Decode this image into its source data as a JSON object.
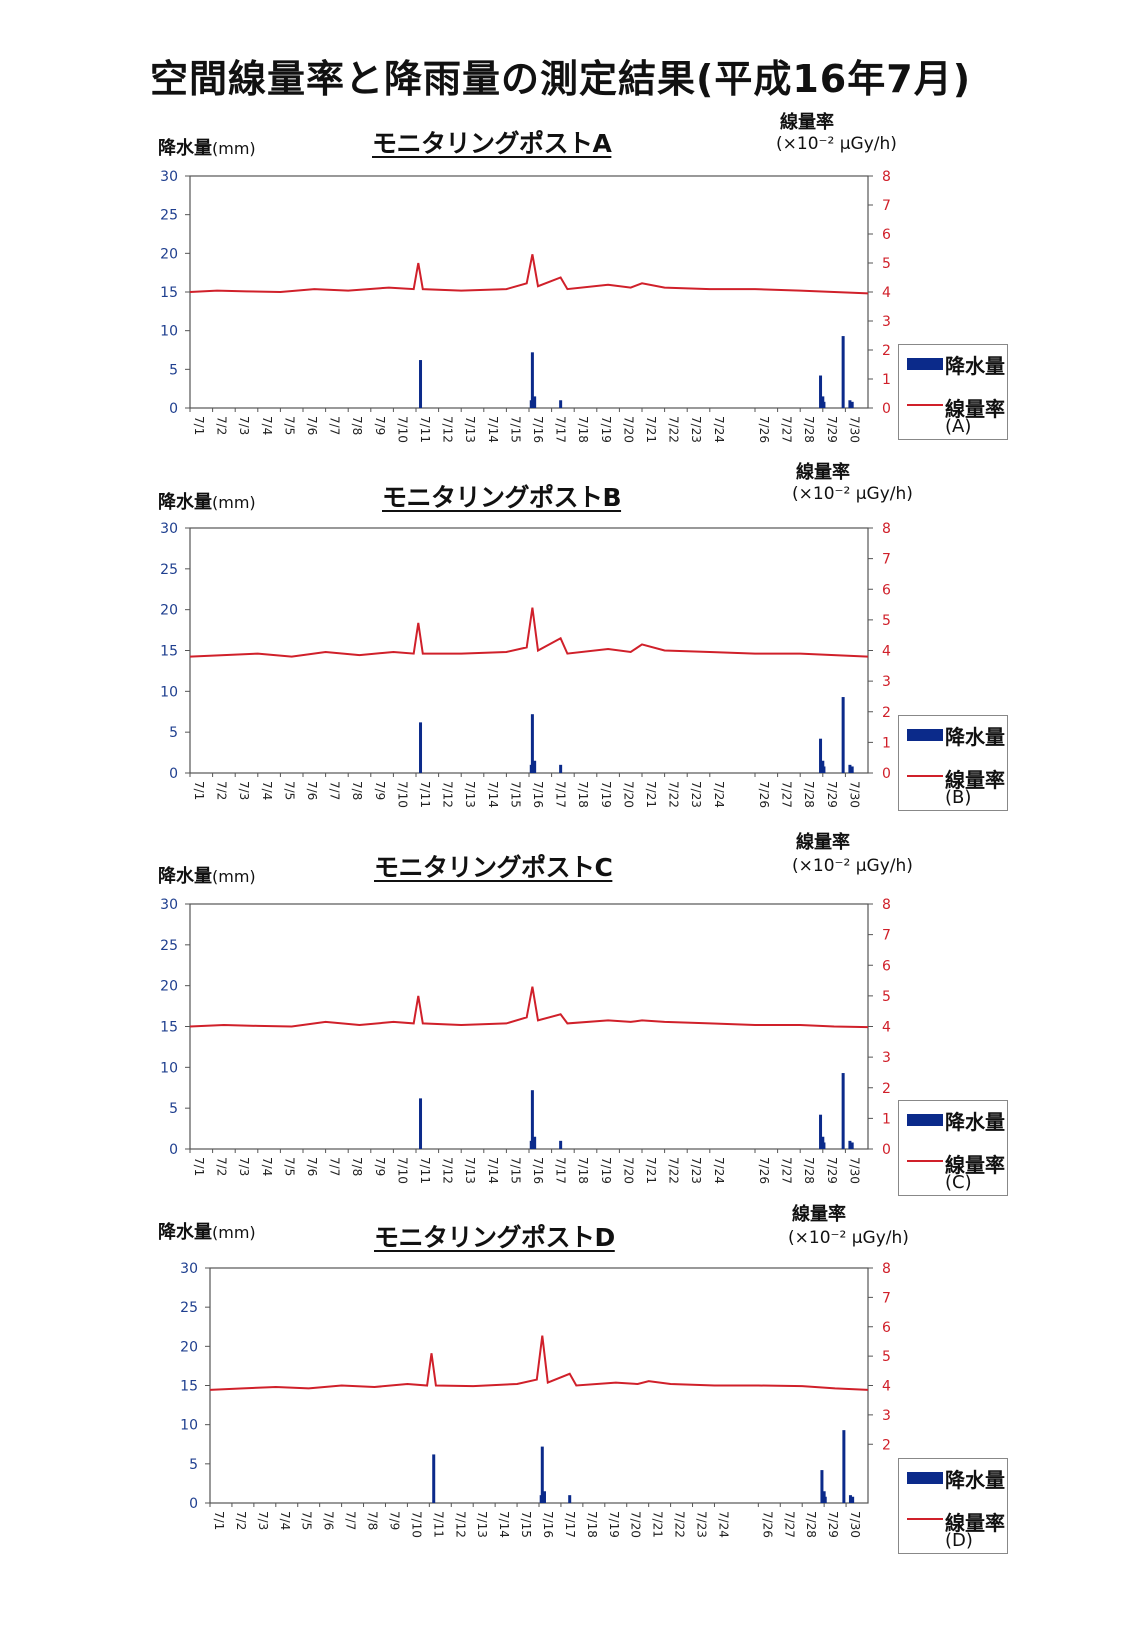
{
  "page": {
    "title": "空間線量率と降雨量の測定結果(平成16年7月)"
  },
  "colors": {
    "rain": "#0b2a8a",
    "dose": "#d0202a",
    "left_axis_text": "#1f3f8f",
    "right_axis_text": "#d0202a"
  },
  "labels": {
    "rain_axis": "降水量",
    "rain_unit": "(mm)",
    "rate_axis": "線量率",
    "rate_unit": "(×10⁻² μGy/h)",
    "legend_rain": "降水量",
    "legend_rate": "線量率"
  },
  "chart_data": [
    {
      "type": "bar+line",
      "title": "モニタリングポストA",
      "legend_tag": "(A)",
      "x_tick_labels": [
        "7/1",
        "7/2",
        "7/3",
        "7/4",
        "7/5",
        "7/6",
        "7/7",
        "7/8",
        "7/9",
        "7/10",
        "7/11",
        "7/12",
        "7/13",
        "7/14",
        "7/15",
        "7/16",
        "7/17",
        "7/18",
        "7/19",
        "7/20",
        "7/21",
        "7/22",
        "7/23",
        "7/24",
        "7/26",
        "7/27",
        "7/28",
        "7/29",
        "7/30"
      ],
      "x_range_days": [
        1,
        31
      ],
      "left_axis": {
        "ticks": [
          0,
          5,
          10,
          15,
          20,
          25,
          30
        ],
        "ylim": [
          0,
          30
        ]
      },
      "right_axis": {
        "ticks": [
          0,
          1,
          2,
          3,
          4,
          5,
          6,
          7,
          8
        ],
        "ylim": [
          0,
          8
        ]
      },
      "rain": [
        {
          "day": 11.2,
          "mm": 6.2
        },
        {
          "day": 16.1,
          "mm": 1.0
        },
        {
          "day": 16.15,
          "mm": 7.2
        },
        {
          "day": 16.25,
          "mm": 1.5
        },
        {
          "day": 17.4,
          "mm": 1.0
        },
        {
          "day": 28.9,
          "mm": 4.2
        },
        {
          "day": 29.0,
          "mm": 1.5
        },
        {
          "day": 29.05,
          "mm": 0.8
        },
        {
          "day": 29.9,
          "mm": 9.3
        },
        {
          "day": 30.2,
          "mm": 1.0
        },
        {
          "day": 30.3,
          "mm": 0.8
        }
      ],
      "dose_rate": [
        {
          "day": 1.0,
          "v": 4.0
        },
        {
          "day": 2.2,
          "v": 4.05
        },
        {
          "day": 3.5,
          "v": 4.02
        },
        {
          "day": 5.0,
          "v": 4.0
        },
        {
          "day": 6.5,
          "v": 4.1
        },
        {
          "day": 8.0,
          "v": 4.05
        },
        {
          "day": 9.8,
          "v": 4.15
        },
        {
          "day": 10.9,
          "v": 4.1
        },
        {
          "day": 11.1,
          "v": 5.0
        },
        {
          "day": 11.3,
          "v": 4.1
        },
        {
          "day": 13.0,
          "v": 4.05
        },
        {
          "day": 15.0,
          "v": 4.1
        },
        {
          "day": 15.9,
          "v": 4.3
        },
        {
          "day": 16.15,
          "v": 5.3
        },
        {
          "day": 16.4,
          "v": 4.2
        },
        {
          "day": 17.4,
          "v": 4.5
        },
        {
          "day": 17.7,
          "v": 4.1
        },
        {
          "day": 19.5,
          "v": 4.25
        },
        {
          "day": 20.5,
          "v": 4.15
        },
        {
          "day": 21.0,
          "v": 4.3
        },
        {
          "day": 22.0,
          "v": 4.15
        },
        {
          "day": 24.0,
          "v": 4.1
        },
        {
          "day": 26.0,
          "v": 4.1
        },
        {
          "day": 28.0,
          "v": 4.05
        },
        {
          "day": 29.5,
          "v": 4.0
        },
        {
          "day": 31.0,
          "v": 3.95
        }
      ]
    },
    {
      "type": "bar+line",
      "title": "モニタリングポストB",
      "legend_tag": "(B)",
      "x_tick_labels": [
        "7/1",
        "7/2",
        "7/3",
        "7/4",
        "7/5",
        "7/6",
        "7/7",
        "7/8",
        "7/9",
        "7/10",
        "7/11",
        "7/12",
        "7/13",
        "7/14",
        "7/15",
        "7/16",
        "7/17",
        "7/18",
        "7/19",
        "7/20",
        "7/21",
        "7/22",
        "7/23",
        "7/24",
        "7/26",
        "7/27",
        "7/28",
        "7/29",
        "7/30"
      ],
      "x_range_days": [
        1,
        31
      ],
      "left_axis": {
        "ticks": [
          0,
          5,
          10,
          15,
          20,
          25,
          30
        ],
        "ylim": [
          0,
          30
        ]
      },
      "right_axis": {
        "ticks": [
          0,
          1,
          2,
          3,
          4,
          5,
          6,
          7,
          8
        ],
        "ylim": [
          0,
          8
        ]
      },
      "rain": [
        {
          "day": 11.2,
          "mm": 6.2
        },
        {
          "day": 16.1,
          "mm": 1.0
        },
        {
          "day": 16.15,
          "mm": 7.2
        },
        {
          "day": 16.25,
          "mm": 1.5
        },
        {
          "day": 17.4,
          "mm": 1.0
        },
        {
          "day": 28.9,
          "mm": 4.2
        },
        {
          "day": 29.0,
          "mm": 1.5
        },
        {
          "day": 29.05,
          "mm": 0.8
        },
        {
          "day": 29.9,
          "mm": 9.3
        },
        {
          "day": 30.2,
          "mm": 1.0
        },
        {
          "day": 30.3,
          "mm": 0.8
        }
      ],
      "dose_rate": [
        {
          "day": 1.0,
          "v": 3.8
        },
        {
          "day": 2.5,
          "v": 3.85
        },
        {
          "day": 4.0,
          "v": 3.9
        },
        {
          "day": 5.5,
          "v": 3.8
        },
        {
          "day": 7.0,
          "v": 3.95
        },
        {
          "day": 8.5,
          "v": 3.85
        },
        {
          "day": 10.0,
          "v": 3.95
        },
        {
          "day": 10.9,
          "v": 3.9
        },
        {
          "day": 11.1,
          "v": 4.9
        },
        {
          "day": 11.3,
          "v": 3.9
        },
        {
          "day": 13.0,
          "v": 3.9
        },
        {
          "day": 15.0,
          "v": 3.95
        },
        {
          "day": 15.9,
          "v": 4.1
        },
        {
          "day": 16.15,
          "v": 5.4
        },
        {
          "day": 16.4,
          "v": 4.0
        },
        {
          "day": 17.4,
          "v": 4.4
        },
        {
          "day": 17.7,
          "v": 3.9
        },
        {
          "day": 19.5,
          "v": 4.05
        },
        {
          "day": 20.5,
          "v": 3.95
        },
        {
          "day": 21.0,
          "v": 4.2
        },
        {
          "day": 22.0,
          "v": 4.0
        },
        {
          "day": 24.0,
          "v": 3.95
        },
        {
          "day": 26.0,
          "v": 3.9
        },
        {
          "day": 28.0,
          "v": 3.9
        },
        {
          "day": 29.5,
          "v": 3.85
        },
        {
          "day": 31.0,
          "v": 3.8
        }
      ]
    },
    {
      "type": "bar+line",
      "title": "モニタリングポストC",
      "legend_tag": "(C)",
      "x_tick_labels": [
        "7/1",
        "7/2",
        "7/3",
        "7/4",
        "7/5",
        "7/6",
        "7/7",
        "7/8",
        "7/9",
        "7/10",
        "7/11",
        "7/12",
        "7/13",
        "7/14",
        "7/15",
        "7/16",
        "7/17",
        "7/18",
        "7/19",
        "7/20",
        "7/21",
        "7/22",
        "7/23",
        "7/24",
        "7/26",
        "7/27",
        "7/28",
        "7/29",
        "7/30"
      ],
      "x_range_days": [
        1,
        31
      ],
      "left_axis": {
        "ticks": [
          0,
          5,
          10,
          15,
          20,
          25,
          30
        ],
        "ylim": [
          0,
          30
        ]
      },
      "right_axis": {
        "ticks": [
          0,
          1,
          2,
          3,
          4,
          5,
          6,
          7,
          8
        ],
        "ylim": [
          0,
          8
        ]
      },
      "rain": [
        {
          "day": 11.2,
          "mm": 6.2
        },
        {
          "day": 16.1,
          "mm": 1.0
        },
        {
          "day": 16.15,
          "mm": 7.2
        },
        {
          "day": 16.25,
          "mm": 1.5
        },
        {
          "day": 17.4,
          "mm": 1.0
        },
        {
          "day": 28.9,
          "mm": 4.2
        },
        {
          "day": 29.0,
          "mm": 1.5
        },
        {
          "day": 29.05,
          "mm": 0.8
        },
        {
          "day": 29.9,
          "mm": 9.3
        },
        {
          "day": 30.2,
          "mm": 1.0
        },
        {
          "day": 30.3,
          "mm": 0.8
        }
      ],
      "dose_rate": [
        {
          "day": 1.0,
          "v": 4.0
        },
        {
          "day": 2.5,
          "v": 4.05
        },
        {
          "day": 4.0,
          "v": 4.02
        },
        {
          "day": 5.5,
          "v": 4.0
        },
        {
          "day": 7.0,
          "v": 4.15
        },
        {
          "day": 8.5,
          "v": 4.05
        },
        {
          "day": 10.0,
          "v": 4.15
        },
        {
          "day": 10.9,
          "v": 4.1
        },
        {
          "day": 11.1,
          "v": 5.0
        },
        {
          "day": 11.3,
          "v": 4.1
        },
        {
          "day": 13.0,
          "v": 4.05
        },
        {
          "day": 15.0,
          "v": 4.1
        },
        {
          "day": 15.9,
          "v": 4.3
        },
        {
          "day": 16.15,
          "v": 5.3
        },
        {
          "day": 16.4,
          "v": 4.2
        },
        {
          "day": 17.4,
          "v": 4.4
        },
        {
          "day": 17.7,
          "v": 4.1
        },
        {
          "day": 19.5,
          "v": 4.2
        },
        {
          "day": 20.5,
          "v": 4.15
        },
        {
          "day": 21.0,
          "v": 4.2
        },
        {
          "day": 22.0,
          "v": 4.15
        },
        {
          "day": 24.0,
          "v": 4.1
        },
        {
          "day": 26.0,
          "v": 4.05
        },
        {
          "day": 28.0,
          "v": 4.05
        },
        {
          "day": 29.5,
          "v": 4.0
        },
        {
          "day": 31.0,
          "v": 3.98
        }
      ]
    },
    {
      "type": "bar+line",
      "title": "モニタリングポストD",
      "legend_tag": "(D)",
      "x_tick_labels": [
        "7/1",
        "7/2",
        "7/3",
        "7/4",
        "7/5",
        "7/6",
        "7/7",
        "7/8",
        "7/9",
        "7/10",
        "7/11",
        "7/12",
        "7/13",
        "7/14",
        "7/15",
        "7/16",
        "7/17",
        "7/18",
        "7/19",
        "7/20",
        "7/21",
        "7/22",
        "7/23",
        "7/24",
        "7/26",
        "7/27",
        "7/28",
        "7/29",
        "7/30"
      ],
      "x_range_days": [
        1,
        31
      ],
      "left_axis": {
        "ticks": [
          0,
          5,
          10,
          15,
          20,
          25,
          30
        ],
        "ylim": [
          0,
          30
        ]
      },
      "right_axis": {
        "ticks": [
          2,
          3,
          4,
          5,
          6,
          7,
          8
        ],
        "ylim": [
          0,
          8
        ]
      },
      "rain": [
        {
          "day": 11.2,
          "mm": 6.2
        },
        {
          "day": 16.1,
          "mm": 1.0
        },
        {
          "day": 16.15,
          "mm": 7.2
        },
        {
          "day": 16.25,
          "mm": 1.5
        },
        {
          "day": 17.4,
          "mm": 1.0
        },
        {
          "day": 28.9,
          "mm": 4.2
        },
        {
          "day": 29.0,
          "mm": 1.5
        },
        {
          "day": 29.05,
          "mm": 0.8
        },
        {
          "day": 29.9,
          "mm": 9.3
        },
        {
          "day": 30.2,
          "mm": 1.0
        },
        {
          "day": 30.3,
          "mm": 0.8
        }
      ],
      "dose_rate": [
        {
          "day": 1.0,
          "v": 3.85
        },
        {
          "day": 2.5,
          "v": 3.9
        },
        {
          "day": 4.0,
          "v": 3.95
        },
        {
          "day": 5.5,
          "v": 3.9
        },
        {
          "day": 7.0,
          "v": 4.0
        },
        {
          "day": 8.5,
          "v": 3.95
        },
        {
          "day": 10.0,
          "v": 4.05
        },
        {
          "day": 10.9,
          "v": 4.0
        },
        {
          "day": 11.1,
          "v": 5.1
        },
        {
          "day": 11.3,
          "v": 4.0
        },
        {
          "day": 13.0,
          "v": 3.98
        },
        {
          "day": 15.0,
          "v": 4.05
        },
        {
          "day": 15.9,
          "v": 4.2
        },
        {
          "day": 16.15,
          "v": 5.7
        },
        {
          "day": 16.4,
          "v": 4.1
        },
        {
          "day": 17.4,
          "v": 4.4
        },
        {
          "day": 17.7,
          "v": 4.0
        },
        {
          "day": 19.5,
          "v": 4.1
        },
        {
          "day": 20.5,
          "v": 4.05
        },
        {
          "day": 21.0,
          "v": 4.15
        },
        {
          "day": 22.0,
          "v": 4.05
        },
        {
          "day": 24.0,
          "v": 4.0
        },
        {
          "day": 26.0,
          "v": 4.0
        },
        {
          "day": 28.0,
          "v": 3.98
        },
        {
          "day": 29.5,
          "v": 3.9
        },
        {
          "day": 31.0,
          "v": 3.85
        }
      ]
    }
  ]
}
